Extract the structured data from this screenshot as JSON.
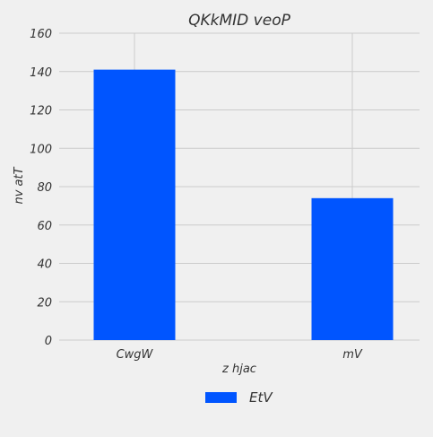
{
  "chart_data": {
    "type": "bar",
    "title": "QKkMID veoP",
    "xlabel": "z hjac",
    "ylabel": "nv atT",
    "categories": [
      "CwgW",
      "mV"
    ],
    "series": [
      {
        "name": "EtV",
        "values": [
          141,
          74
        ]
      }
    ],
    "ylim": [
      0,
      160
    ],
    "yticks": [
      0,
      20,
      40,
      60,
      80,
      100,
      120,
      140,
      160
    ],
    "grid": true,
    "legend_position": "bottom-center",
    "colors": {
      "bar": "#0055ff",
      "background": "#f0f0f0",
      "grid": "#cbcbcb",
      "text": "#333333"
    }
  }
}
